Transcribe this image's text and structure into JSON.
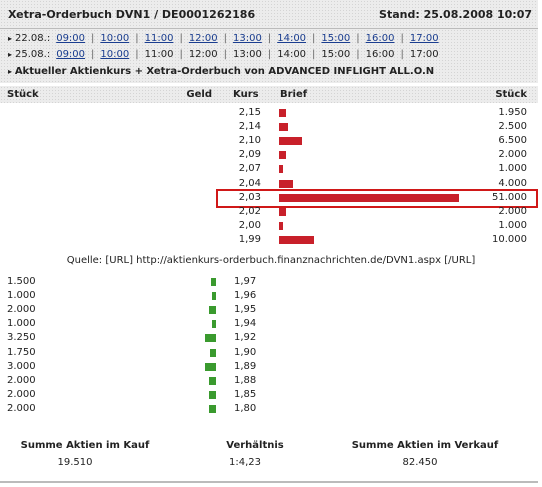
{
  "header": {
    "title": "Xetra-Orderbuch DVN1 / DE0001262186",
    "stand": "Stand: 25.08.2008 10:07"
  },
  "time_rows": [
    {
      "date": "22.08.:",
      "times": [
        "09:00",
        "10:00",
        "11:00",
        "12:00",
        "13:00",
        "14:00",
        "15:00",
        "16:00",
        "17:00"
      ],
      "links": [
        true,
        true,
        true,
        true,
        true,
        true,
        true,
        true,
        true
      ]
    },
    {
      "date": "25.08.:",
      "times": [
        "09:00",
        "10:00",
        "11:00",
        "12:00",
        "13:00",
        "14:00",
        "15:00",
        "16:00",
        "17:00"
      ],
      "links": [
        true,
        true,
        false,
        false,
        false,
        false,
        false,
        false,
        false
      ]
    }
  ],
  "link_line": "Aktueller Aktienkurs + Xetra-Orderbuch von ADVANCED INFLIGHT ALL.O.N",
  "columns": {
    "stueck_left": "Stück",
    "geld": "Geld",
    "kurs": "Kurs",
    "brief": "Brief",
    "stueck_right": "Stück"
  },
  "asks": {
    "kurs": [
      "2,15",
      "2,14",
      "2,10",
      "2,09",
      "2,07",
      "2,04",
      "2,03",
      "2,02",
      "2,00",
      "1,99"
    ],
    "stueck": [
      1950,
      2500,
      6500,
      2000,
      1000,
      4000,
      51000,
      2000,
      1000,
      10000
    ],
    "stueck_labels": [
      "1.950",
      "2.500",
      "6.500",
      "2.000",
      "1.000",
      "4.000",
      "51.000",
      "2.000",
      "1.000",
      "10.000"
    ],
    "highlight_index": 6
  },
  "source": "Quelle: [URL] http://aktienkurs-orderbuch.finanznachrichten.de/DVN1.aspx [/URL]",
  "bids": {
    "kurs": [
      "1,97",
      "1,96",
      "1,95",
      "1,94",
      "1,92",
      "1,90",
      "1,89",
      "1,88",
      "1,85",
      "1,80"
    ],
    "stueck": [
      1500,
      1000,
      2000,
      1000,
      3250,
      1750,
      3000,
      2000,
      2000,
      2000
    ],
    "stueck_labels": [
      "1.500",
      "1.000",
      "2.000",
      "1.000",
      "3.250",
      "1.750",
      "3.000",
      "2.000",
      "2.000",
      "2.000"
    ]
  },
  "summary": {
    "kauf_label": "Summe Aktien im Kauf",
    "kauf_value": "19.510",
    "ratio_label": "Verhältnis",
    "ratio_value": "1:4,23",
    "verkauf_label": "Summe Aktien im Verkauf",
    "verkauf_value": "82.450"
  }
}
